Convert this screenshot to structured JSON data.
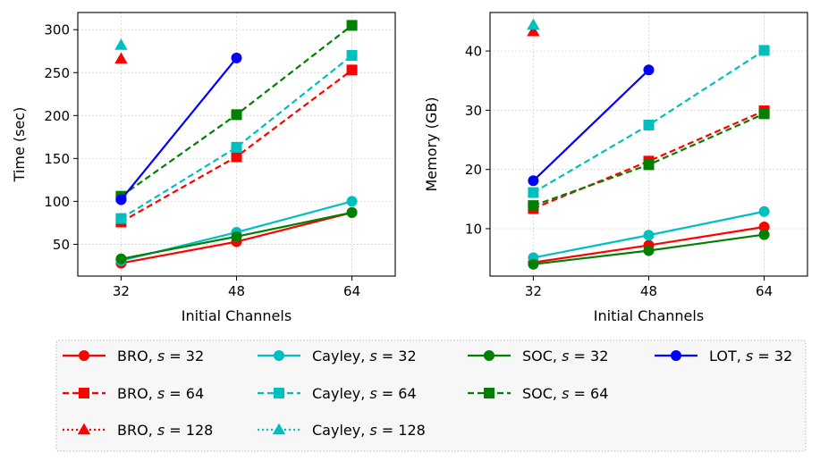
{
  "colors": {
    "BRO": "#ff0000",
    "Cayley": "#00bfbf",
    "SOC": "#008000",
    "LOT": "#0000ff"
  },
  "chart_data": [
    {
      "type": "line",
      "title": "",
      "xlabel": "Initial Channels",
      "ylabel": "Time (sec)",
      "xticks": [
        32,
        48,
        64
      ],
      "yticks": [
        50,
        100,
        150,
        200,
        250,
        300
      ],
      "xlim": [
        26,
        70
      ],
      "ylim": [
        13,
        320
      ],
      "grid": true,
      "series": [
        {
          "name": "BRO, s = 32",
          "method": "BRO",
          "s": 32,
          "style": "solid",
          "marker": "circle",
          "x": [
            32,
            48,
            64
          ],
          "values": [
            28,
            53,
            87
          ]
        },
        {
          "name": "BRO, s = 64",
          "method": "BRO",
          "s": 64,
          "style": "dashed",
          "marker": "square",
          "x": [
            32,
            48,
            64
          ],
          "values": [
            76,
            152,
            253
          ]
        },
        {
          "name": "BRO, s = 128",
          "method": "BRO",
          "s": 128,
          "style": "dotted",
          "marker": "triangle",
          "x": [
            32
          ],
          "values": [
            266
          ]
        },
        {
          "name": "Cayley, s = 32",
          "method": "Cayley",
          "s": 32,
          "style": "solid",
          "marker": "circle",
          "x": [
            32,
            48,
            64
          ],
          "values": [
            31,
            64,
            100
          ]
        },
        {
          "name": "Cayley, s = 64",
          "method": "Cayley",
          "s": 64,
          "style": "dashed",
          "marker": "square",
          "x": [
            32,
            48,
            64
          ],
          "values": [
            80,
            163,
            270
          ]
        },
        {
          "name": "Cayley, s = 128",
          "method": "Cayley",
          "s": 128,
          "style": "dotted",
          "marker": "triangle",
          "x": [
            32
          ],
          "values": [
            282
          ]
        },
        {
          "name": "SOC, s = 32",
          "method": "SOC",
          "s": 32,
          "style": "solid",
          "marker": "circle",
          "x": [
            32,
            48,
            64
          ],
          "values": [
            33,
            59,
            87
          ]
        },
        {
          "name": "SOC, s = 64",
          "method": "SOC",
          "s": 64,
          "style": "dashed",
          "marker": "square",
          "x": [
            32,
            48,
            64
          ],
          "values": [
            106,
            201,
            305
          ]
        },
        {
          "name": "LOT, s = 32",
          "method": "LOT",
          "s": 32,
          "style": "solid",
          "marker": "circle",
          "x": [
            32,
            48
          ],
          "values": [
            102,
            267
          ]
        }
      ]
    },
    {
      "type": "line",
      "title": "",
      "xlabel": "Initial Channels",
      "ylabel": "Memory (GB)",
      "xticks": [
        32,
        48,
        64
      ],
      "yticks": [
        10,
        20,
        30,
        40
      ],
      "xlim": [
        26,
        70
      ],
      "ylim": [
        2,
        46.5
      ],
      "grid": true,
      "series": [
        {
          "name": "BRO, s = 32",
          "method": "BRO",
          "s": 32,
          "style": "solid",
          "marker": "circle",
          "x": [
            32,
            48,
            64
          ],
          "values": [
            4.3,
            7.2,
            10.3
          ]
        },
        {
          "name": "BRO, s = 64",
          "method": "BRO",
          "s": 64,
          "style": "dashed",
          "marker": "square",
          "x": [
            32,
            48,
            64
          ],
          "values": [
            13.4,
            21.4,
            29.9
          ]
        },
        {
          "name": "BRO, s = 128",
          "method": "BRO",
          "s": 128,
          "style": "dotted",
          "marker": "triangle",
          "x": [
            32
          ],
          "values": [
            43.3
          ]
        },
        {
          "name": "Cayley, s = 32",
          "method": "Cayley",
          "s": 32,
          "style": "solid",
          "marker": "circle",
          "x": [
            32,
            48,
            64
          ],
          "values": [
            5.1,
            8.9,
            12.9
          ]
        },
        {
          "name": "Cayley, s = 64",
          "method": "Cayley",
          "s": 64,
          "style": "dashed",
          "marker": "square",
          "x": [
            32,
            48,
            64
          ],
          "values": [
            16.1,
            27.5,
            40.1
          ]
        },
        {
          "name": "Cayley, s = 128",
          "method": "Cayley",
          "s": 128,
          "style": "dotted",
          "marker": "triangle",
          "x": [
            32
          ],
          "values": [
            44.4
          ]
        },
        {
          "name": "SOC, s = 32",
          "method": "SOC",
          "s": 32,
          "style": "solid",
          "marker": "circle",
          "x": [
            32,
            48,
            64
          ],
          "values": [
            4.0,
            6.3,
            9.0
          ]
        },
        {
          "name": "SOC, s = 64",
          "method": "SOC",
          "s": 64,
          "style": "dashed",
          "marker": "square",
          "x": [
            32,
            48,
            64
          ],
          "values": [
            13.9,
            20.8,
            29.4
          ]
        },
        {
          "name": "LOT, s = 32",
          "method": "LOT",
          "s": 32,
          "style": "solid",
          "marker": "circle",
          "x": [
            32,
            48
          ],
          "values": [
            18.1,
            36.8
          ]
        }
      ]
    }
  ],
  "legend": {
    "placement": "bottom",
    "columns": [
      [
        "BRO, s = 32",
        "BRO, s = 64",
        "BRO, s = 128"
      ],
      [
        "Cayley, s = 32",
        "Cayley, s = 64",
        "Cayley, s = 128"
      ],
      [
        "SOC, s = 32",
        "SOC, s = 64"
      ],
      [
        "LOT, s = 32"
      ]
    ]
  }
}
